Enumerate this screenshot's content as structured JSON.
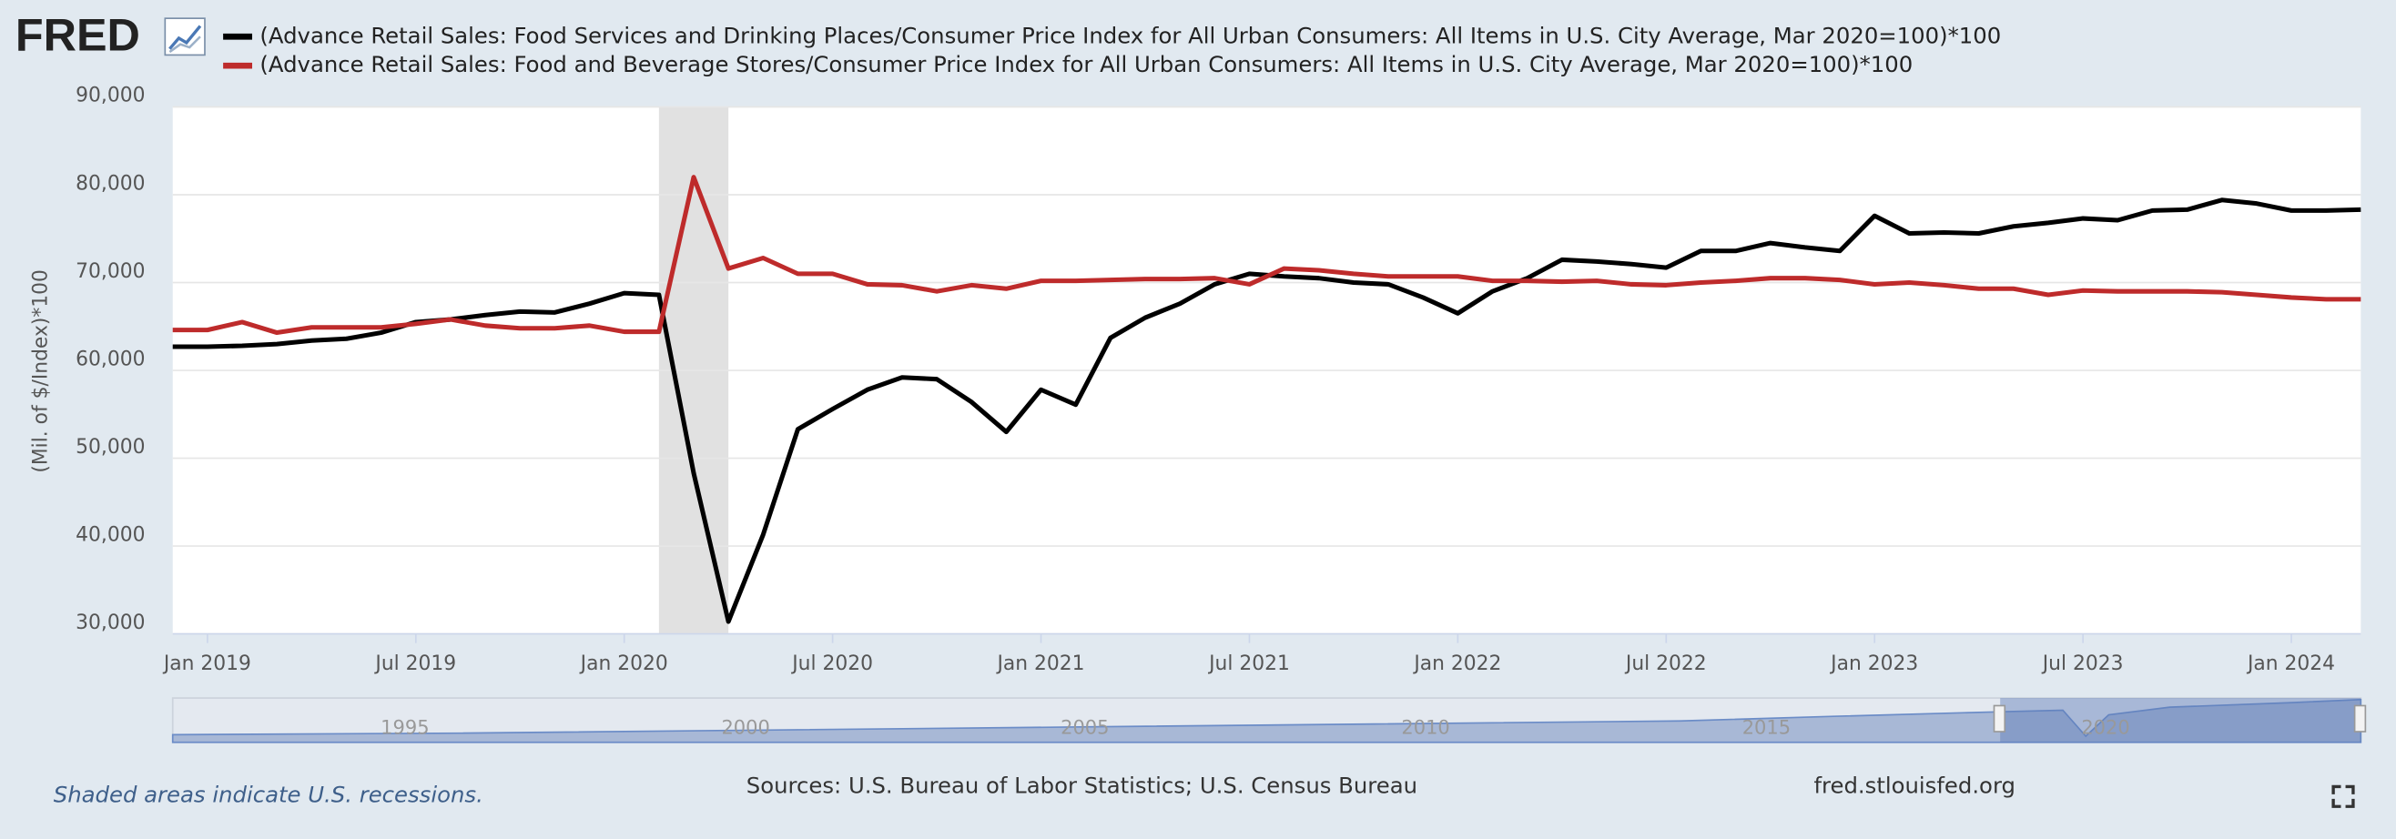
{
  "chart_data": {
    "type": "line",
    "logo": "FRED",
    "ylabel": "(Mil. of $/Index)*100",
    "x": [
      "2018-12",
      "2019-01",
      "2019-02",
      "2019-03",
      "2019-04",
      "2019-05",
      "2019-06",
      "2019-07",
      "2019-08",
      "2019-09",
      "2019-10",
      "2019-11",
      "2019-12",
      "2020-01",
      "2020-02",
      "2020-03",
      "2020-04",
      "2020-05",
      "2020-06",
      "2020-07",
      "2020-08",
      "2020-09",
      "2020-10",
      "2020-11",
      "2020-12",
      "2021-01",
      "2021-02",
      "2021-03",
      "2021-04",
      "2021-05",
      "2021-06",
      "2021-07",
      "2021-08",
      "2021-09",
      "2021-10",
      "2021-11",
      "2021-12",
      "2022-01",
      "2022-02",
      "2022-03",
      "2022-04",
      "2022-05",
      "2022-06",
      "2022-07",
      "2022-08",
      "2022-09",
      "2022-10",
      "2022-11",
      "2022-12",
      "2023-01",
      "2023-02",
      "2023-03",
      "2023-04",
      "2023-05",
      "2023-06",
      "2023-07",
      "2023-08",
      "2023-09",
      "2023-10",
      "2023-11",
      "2023-12",
      "2024-01",
      "2024-02",
      "2024-03"
    ],
    "series": [
      {
        "name": "(Advance Retail Sales: Food Services and Drinking Places/Consumer Price Index for All Urban Consumers: All Items in U.S. City Average, Mar 2020=100)*100",
        "color": "#000000",
        "values": [
          62700,
          62700,
          62800,
          63000,
          63400,
          63600,
          64300,
          65500,
          65800,
          66300,
          66700,
          66600,
          67600,
          68800,
          68600,
          48300,
          31400,
          41300,
          53300,
          55600,
          57800,
          59200,
          59000,
          56400,
          53000,
          57800,
          56100,
          63700,
          66000,
          67600,
          69800,
          71000,
          70700,
          70500,
          70000,
          69800,
          68300,
          66500,
          69000,
          70500,
          72600,
          72400,
          72100,
          71700,
          73600,
          73600,
          74500,
          74000,
          73600,
          77600,
          75600,
          75700,
          75600,
          76400,
          76800,
          77300,
          77100,
          78200,
          78300,
          79400,
          79000,
          78200,
          78200,
          78300
        ]
      },
      {
        "name": "(Advance Retail Sales: Food and Beverage Stores/Consumer Price Index for All Urban Consumers: All Items in U.S. City Average, Mar 2020=100)*100",
        "color": "#be2b2b",
        "values": [
          64600,
          64600,
          65500,
          64300,
          64900,
          64900,
          64900,
          65300,
          65800,
          65100,
          64800,
          64800,
          65100,
          64400,
          64400,
          82000,
          71600,
          72800,
          71000,
          71000,
          69800,
          69700,
          69000,
          69700,
          69300,
          70200,
          70200,
          70300,
          70400,
          70400,
          70500,
          69800,
          71600,
          71400,
          71000,
          70700,
          70700,
          70700,
          70200,
          70200,
          70100,
          70200,
          69800,
          69700,
          70000,
          70200,
          70500,
          70500,
          70300,
          69800,
          70000,
          69700,
          69300,
          69300,
          68600,
          69100,
          69000,
          69000,
          69000,
          68900,
          68600,
          68300,
          68100,
          68100
        ]
      }
    ],
    "recessions": [
      [
        "2020-02",
        "2020-04"
      ]
    ],
    "xlim": [
      "2018-12",
      "2024-03"
    ],
    "xticks": [
      {
        "value": "2019-01",
        "label": "Jan 2019"
      },
      {
        "value": "2019-07",
        "label": "Jul 2019"
      },
      {
        "value": "2020-01",
        "label": "Jan 2020"
      },
      {
        "value": "2020-07",
        "label": "Jul 2020"
      },
      {
        "value": "2021-01",
        "label": "Jan 2021"
      },
      {
        "value": "2021-07",
        "label": "Jul 2021"
      },
      {
        "value": "2022-01",
        "label": "Jan 2022"
      },
      {
        "value": "2022-07",
        "label": "Jul 2022"
      },
      {
        "value": "2023-01",
        "label": "Jan 2023"
      },
      {
        "value": "2023-07",
        "label": "Jul 2023"
      },
      {
        "value": "2024-01",
        "label": "Jan 2024"
      }
    ],
    "ylim": [
      30000,
      90000
    ],
    "yticks": [
      {
        "value": 30000,
        "label": "30,000"
      },
      {
        "value": 40000,
        "label": "40,000"
      },
      {
        "value": 50000,
        "label": "50,000"
      },
      {
        "value": 60000,
        "label": "60,000"
      },
      {
        "value": 70000,
        "label": "70,000"
      },
      {
        "value": 80000,
        "label": "80,000"
      },
      {
        "value": 90000,
        "label": "90,000"
      }
    ],
    "grid": true,
    "navigator_labels": [
      "1995",
      "2000",
      "2005",
      "2010",
      "2015",
      "2020"
    ],
    "recession_note": "Shaded areas indicate U.S. recessions.",
    "source": "Sources: U.S. Bureau of Labor Statistics; U.S. Census Bureau",
    "site": "fred.stlouisfed.org"
  }
}
